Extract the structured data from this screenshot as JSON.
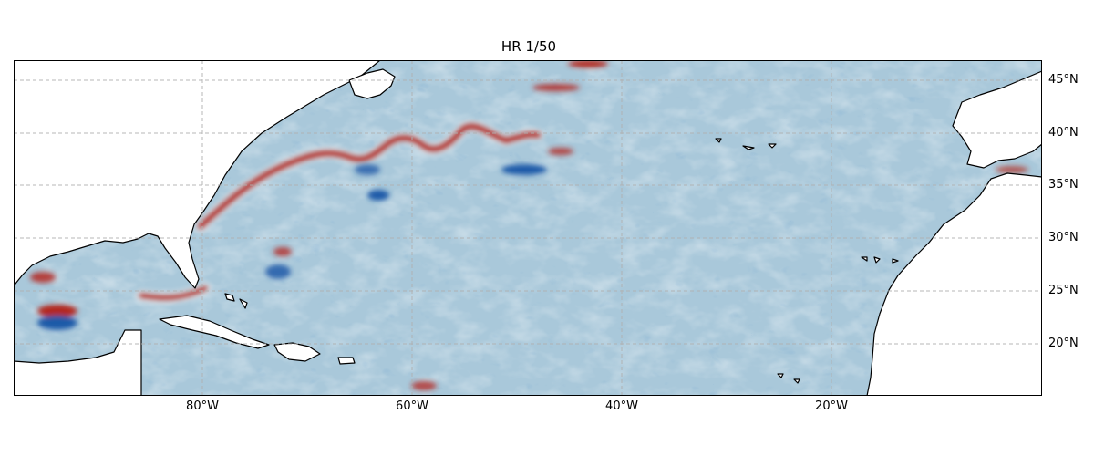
{
  "title": "HR 1/50",
  "lat_ticks": [
    "45°N",
    "40°N",
    "35°N",
    "30°N",
    "25°N",
    "20°N"
  ],
  "lon_ticks": [
    "80°W",
    "60°W",
    "40°W",
    "20°W"
  ],
  "colors": {
    "ocean_base": "#a9c8da",
    "warm_anomaly": "#b3261e",
    "cold_anomaly": "#1f5aa8",
    "land": "#ffffff",
    "coastline": "#000000",
    "gridline": "#b0b0b0"
  },
  "grid": "dashed"
}
